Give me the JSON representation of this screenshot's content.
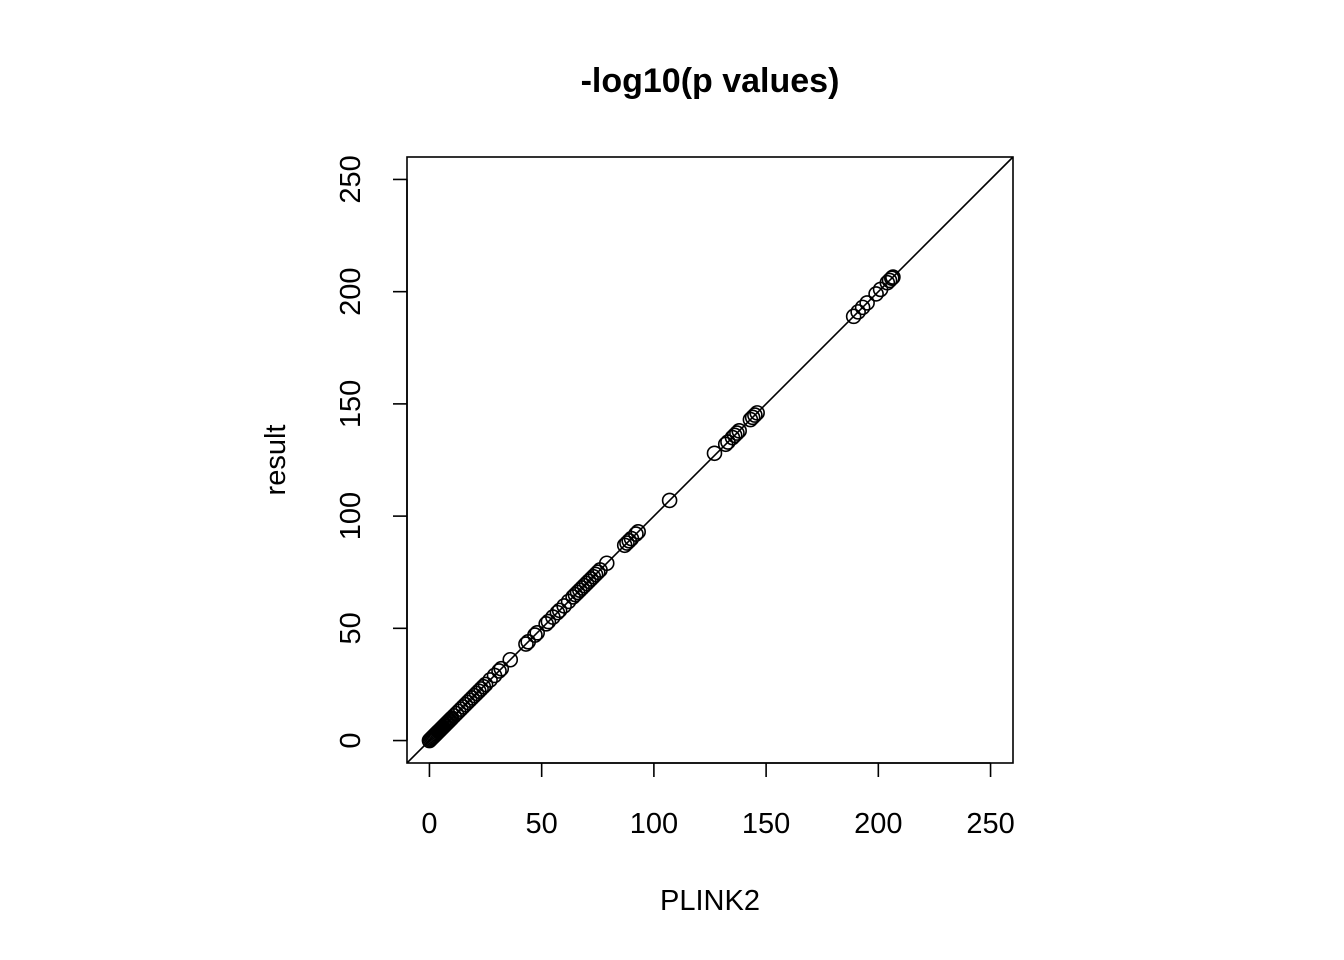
{
  "chart_data": {
    "type": "scatter",
    "title": "-log10(p values)",
    "xlabel": "PLINK2",
    "ylabel": "result",
    "xlim": [
      -10,
      260
    ],
    "ylim": [
      -10,
      260
    ],
    "x_ticks": [
      0,
      50,
      100,
      150,
      200,
      250
    ],
    "y_ticks": [
      0,
      50,
      100,
      150,
      200,
      250
    ],
    "x_tick_labels": [
      "0",
      "50",
      "100",
      "150",
      "200",
      "250"
    ],
    "y_tick_labels": [
      "0",
      "50",
      "100",
      "150",
      "200",
      "250"
    ],
    "grid": false,
    "reference_line": {
      "intercept": 0,
      "slope": 1
    },
    "series": [
      {
        "x": [
          0,
          0.5,
          1,
          1.5,
          2,
          2.5,
          3,
          3.5,
          4,
          4.5,
          5,
          5.5,
          6,
          6.5,
          7,
          7.5,
          8,
          8.5,
          9,
          9.5,
          10,
          11,
          12,
          13,
          14,
          15,
          16,
          17,
          18,
          19,
          20,
          21,
          22,
          23,
          24,
          25,
          27,
          29,
          31,
          32,
          36,
          43,
          44,
          47,
          48,
          52,
          53,
          55,
          57,
          58,
          60,
          62,
          64,
          65,
          66,
          67,
          68,
          69,
          70,
          71,
          72,
          73,
          74,
          75,
          76,
          79,
          87,
          88,
          89,
          90,
          92,
          93,
          107,
          127,
          132,
          133,
          135,
          136,
          137,
          138,
          143,
          144,
          145,
          146,
          189,
          191,
          193,
          195,
          199,
          201,
          204,
          205,
          206,
          206.5
        ],
        "y": [
          0,
          0.5,
          1,
          1.5,
          2,
          2.5,
          3,
          3.5,
          4,
          4.5,
          5,
          5.5,
          6,
          6.5,
          7,
          7.5,
          8,
          8.5,
          9,
          9.5,
          10,
          11,
          12,
          13,
          14,
          15,
          16,
          17,
          18,
          19,
          20,
          21,
          22,
          23,
          24,
          25,
          27,
          29,
          31,
          32,
          36,
          43,
          44,
          47,
          48,
          52,
          53,
          55,
          57,
          58,
          60,
          62,
          64,
          65,
          66,
          67,
          68,
          69,
          70,
          71,
          72,
          73,
          74,
          75,
          76,
          79,
          87,
          88,
          89,
          90,
          92,
          93,
          107,
          128,
          132,
          133,
          135,
          136,
          137,
          138,
          143,
          144,
          145,
          146,
          189,
          191,
          193,
          195,
          199,
          201,
          204,
          205,
          206,
          206.5
        ]
      }
    ]
  }
}
